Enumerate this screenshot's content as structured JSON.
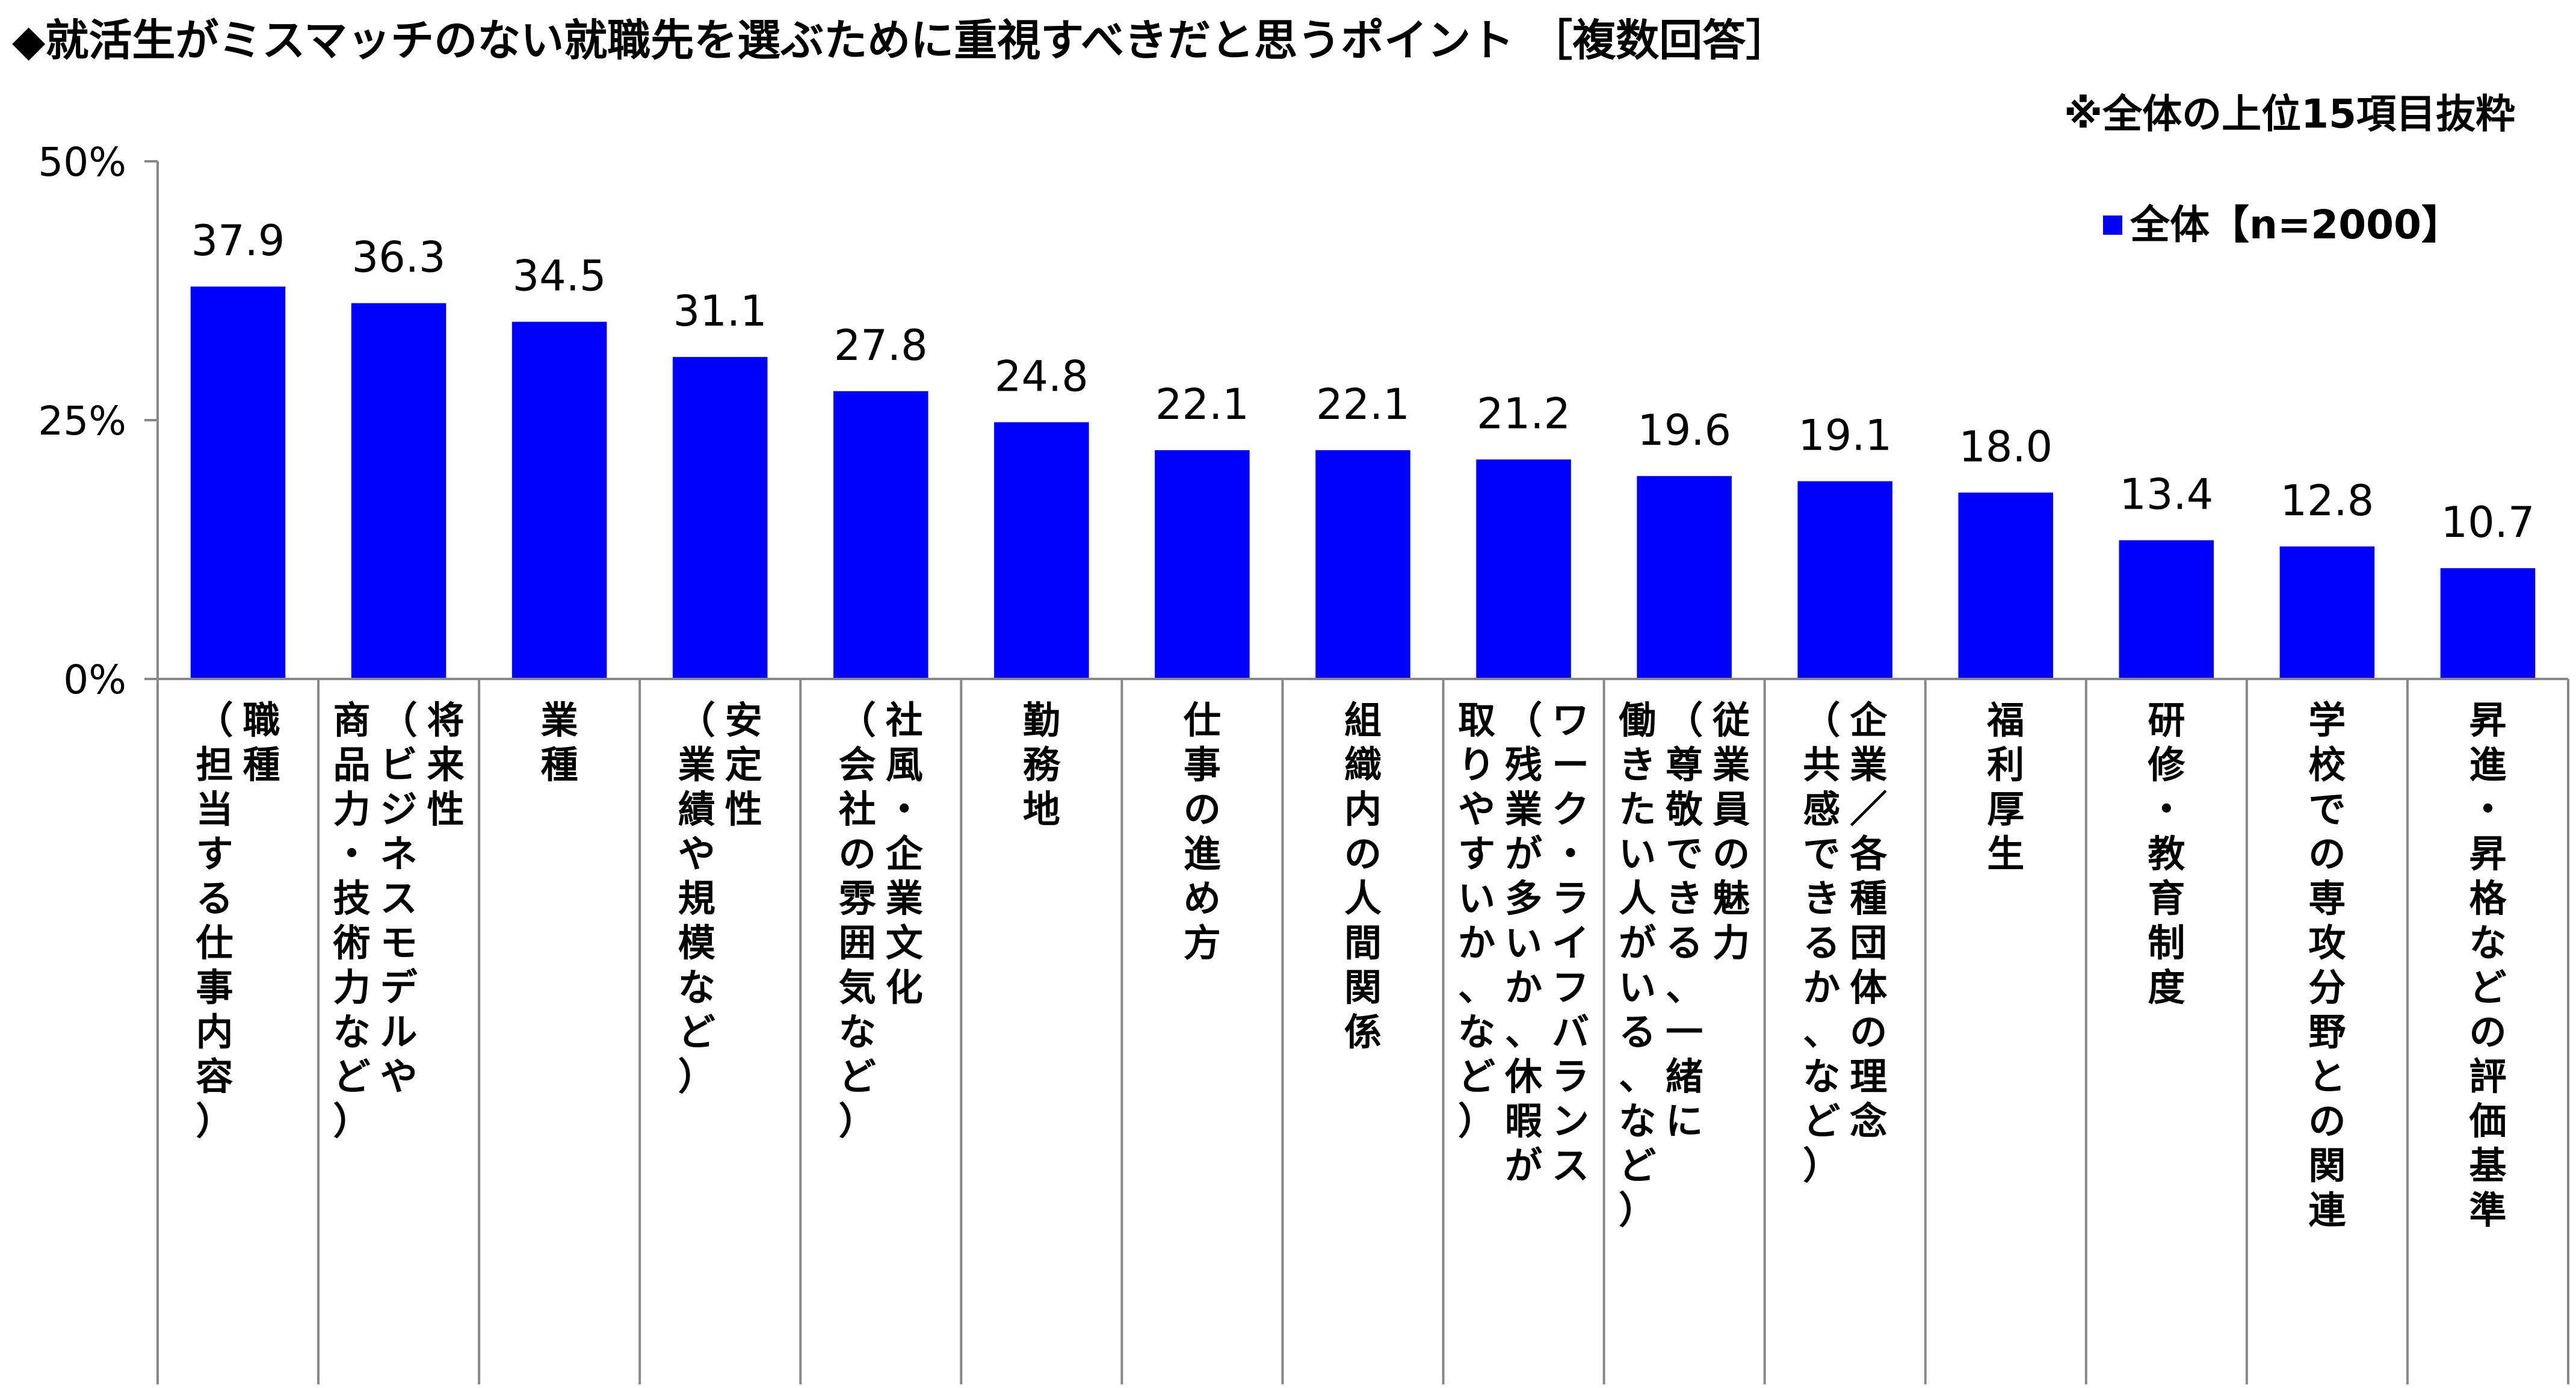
{
  "title": "◆就活生がミスマッチのない就職先を選ぶために重視すべきだと思うポイント ［複数回答］",
  "note": "※全体の上位15項目抜粋",
  "chart_data": {
    "type": "bar",
    "title": "◆就活生がミスマッチのない就職先を選ぶために重視すべきだと思うポイント ［複数回答］",
    "ylim": [
      0,
      50
    ],
    "yticks": [
      "0%",
      "25%",
      "50%"
    ],
    "ytick_values": [
      0,
      25,
      50
    ],
    "legend": "top-right",
    "grid": false,
    "colors": {
      "bar": "#0000FF",
      "axis": "#888888"
    },
    "series": [
      {
        "name": "全体【n=2000】",
        "values": [
          37.9,
          36.3,
          34.5,
          31.1,
          27.8,
          24.8,
          22.1,
          22.1,
          21.2,
          19.6,
          19.1,
          18.0,
          13.4,
          12.8,
          10.7
        ]
      }
    ],
    "value_labels": [
      "37.9",
      "36.3",
      "34.5",
      "31.1",
      "27.8",
      "24.8",
      "22.1",
      "22.1",
      "21.2",
      "19.6",
      "19.1",
      "18.0",
      "13.4",
      "12.8",
      "10.7"
    ],
    "categories": [
      "職種（担当する仕事内容）",
      "将来性（ビジネスモデルや商品力・技術力など）",
      "業種",
      "安定性（業績や規模など）",
      "社風・企業文化（会社の雰囲気など）",
      "勤務地",
      "仕事の進め方",
      "組織内の人間関係",
      "ワーク・ライフバランス（残業が多いか、休暇が取りやすいか、など）",
      "従業員の魅力（尊敬できる、一緒に働きたい人がいる、など）",
      "企業/各種団体の理念（共感できるか、など）",
      "福利厚生",
      "研修・教育制度",
      "学校での専攻分野との関連",
      "昇進・昇格などの評価基準"
    ],
    "category_lines": [
      [
        "職種",
        "（担当する仕事内容）"
      ],
      [
        "将来性",
        "（ビジネスモデルや",
        "商品力・技術力など）"
      ],
      [
        "業種"
      ],
      [
        "安定性",
        "（業績や規模など）"
      ],
      [
        "社風・企業文化",
        "（会社の雰囲気など）"
      ],
      [
        "勤務地"
      ],
      [
        "仕事の進め方"
      ],
      [
        "組織内の人間関係"
      ],
      [
        "ワーク・ライフバランス",
        "（残業が多いか、休暇が",
        "取りやすいか、など）"
      ],
      [
        "従業員の魅力",
        "（尊敬できる、一緒に",
        "働きたい人がいる、など）"
      ],
      [
        "企業／各種団体の理念",
        "（共感できるか、など）"
      ],
      [
        "福利厚生"
      ],
      [
        "研修・教育制度"
      ],
      [
        "学校での専攻分野との関連"
      ],
      [
        "昇進・昇格などの評価基準"
      ]
    ]
  }
}
